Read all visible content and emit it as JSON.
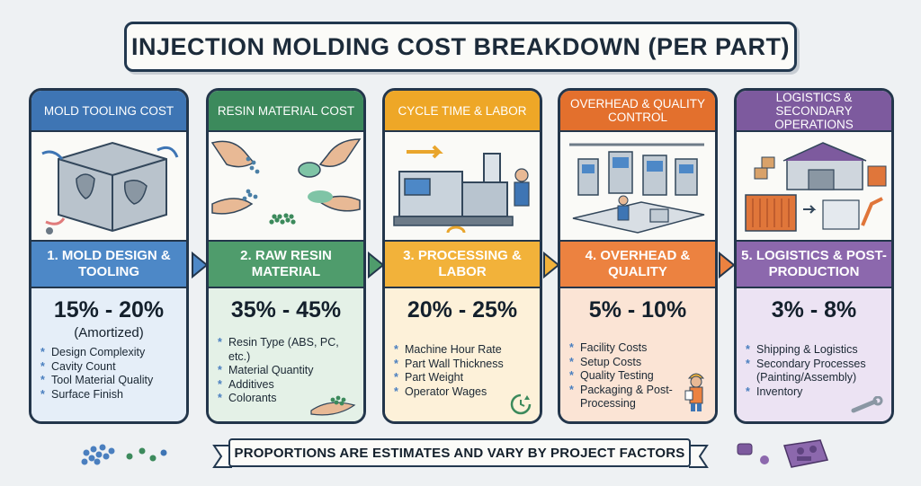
{
  "title": "INJECTION MOLDING COST BREAKDOWN (PER PART)",
  "footer": "PROPORTIONS ARE ESTIMATES AND VARY BY PROJECT FACTORS",
  "colors": {
    "blue": "#3e75b4",
    "green": "#3c8a5c",
    "yellow": "#eea727",
    "orange": "#e3702d",
    "purple": "#7d5a9e",
    "navy": "#22384f"
  },
  "cards": [
    {
      "header": "MOLD TOOLING COST",
      "step": "1. MOLD DESIGN & TOOLING",
      "percent": "15% - 20%",
      "note": "(Amortized)",
      "factors": [
        "Design Complexity",
        "Cavity Count",
        "Tool Material Quality",
        "Surface Finish"
      ]
    },
    {
      "header": "RESIN MATERIAL COST",
      "step": "2. RAW RESIN MATERIAL",
      "percent": "35% - 45%",
      "factors": [
        "Resin Type (ABS, PC, etc.)",
        "Material Quantity",
        "Additives",
        "Colorants"
      ]
    },
    {
      "header": "CYCLE TIME & LABOR",
      "step": "3. PROCESSING & LABOR",
      "percent": "20% - 25%",
      "factors": [
        "Machine Hour Rate",
        "Part Wall Thickness",
        "Part Weight",
        "Operator Wages"
      ]
    },
    {
      "header": "OVERHEAD & QUALITY CONTROL",
      "step": "4. OVERHEAD & QUALITY",
      "percent": "5% - 10%",
      "factors": [
        "Facility Costs",
        "Setup Costs",
        "Quality Testing",
        "Packaging & Post-Processing"
      ]
    },
    {
      "header": "LOGISTICS & SECONDARY OPERATIONS",
      "step": "5. LOGISTICS & POST-PRODUCTION",
      "percent": "3% - 8%",
      "factors": [
        "Shipping & Logistics",
        "Secondary Processes (Painting/Assembly)",
        "Inventory"
      ]
    }
  ]
}
